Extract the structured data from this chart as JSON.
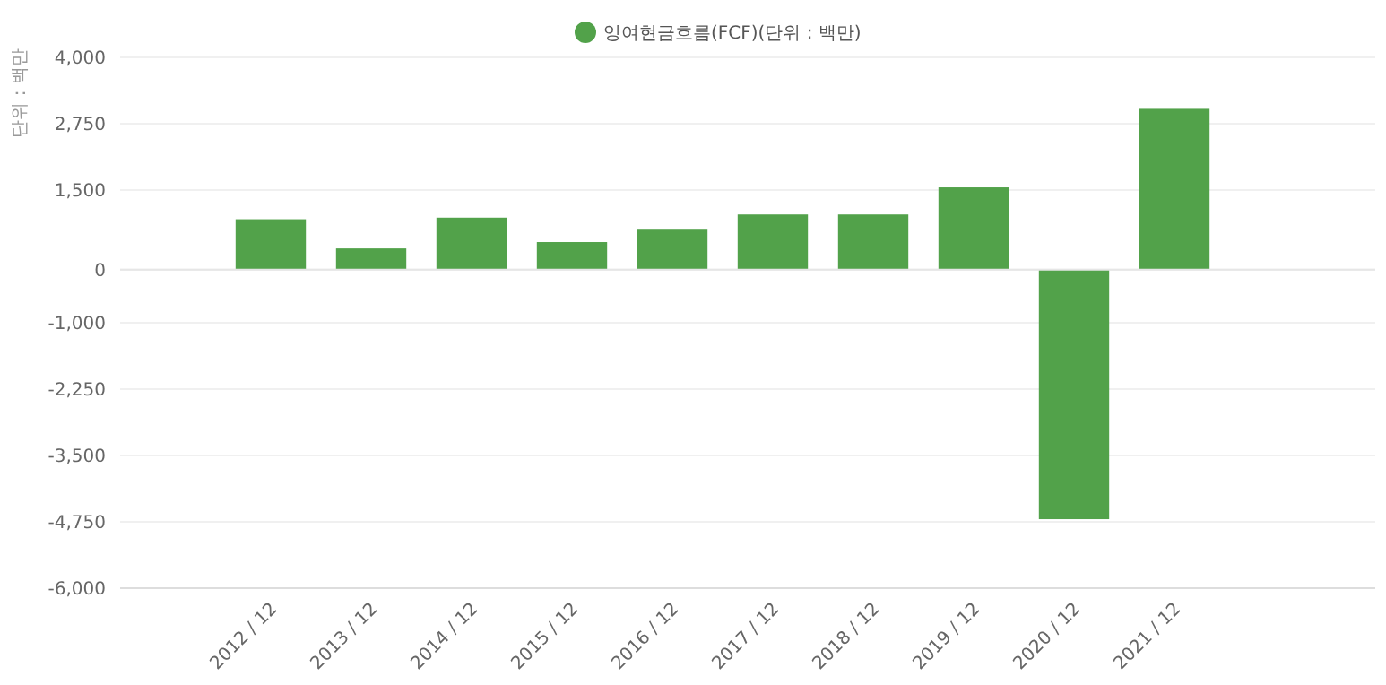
{
  "chart_data": {
    "type": "bar",
    "ylabel": "단위 : 백만",
    "categories": [
      "2012 / 12",
      "2013 / 12",
      "2014 / 12",
      "2015 / 12",
      "2016 / 12",
      "2017 / 12",
      "2018 / 12",
      "2019 / 12",
      "2020 / 12",
      "2021 / 12"
    ],
    "series": [
      {
        "name": "잉여현금흐름(FCF)(단위 : 백만)",
        "color": "#52a24a",
        "values": [
          950,
          400,
          980,
          520,
          770,
          1040,
          1040,
          1550,
          -4700,
          3030
        ]
      }
    ],
    "ylim": [
      -6000,
      4000
    ],
    "yticks": [
      {
        "value": 4000,
        "label": "4,000"
      },
      {
        "value": 2750,
        "label": "2,750"
      },
      {
        "value": 1500,
        "label": "1,500"
      },
      0,
      {
        "value": -1000,
        "label": "-1,000"
      },
      {
        "value": -2250,
        "label": "-2,250"
      },
      {
        "value": -3500,
        "label": "-3,500"
      },
      {
        "value": -4750,
        "label": "-4,750"
      },
      {
        "value": -6000,
        "label": "-6,000"
      }
    ],
    "grid": "y",
    "legend": "top"
  }
}
